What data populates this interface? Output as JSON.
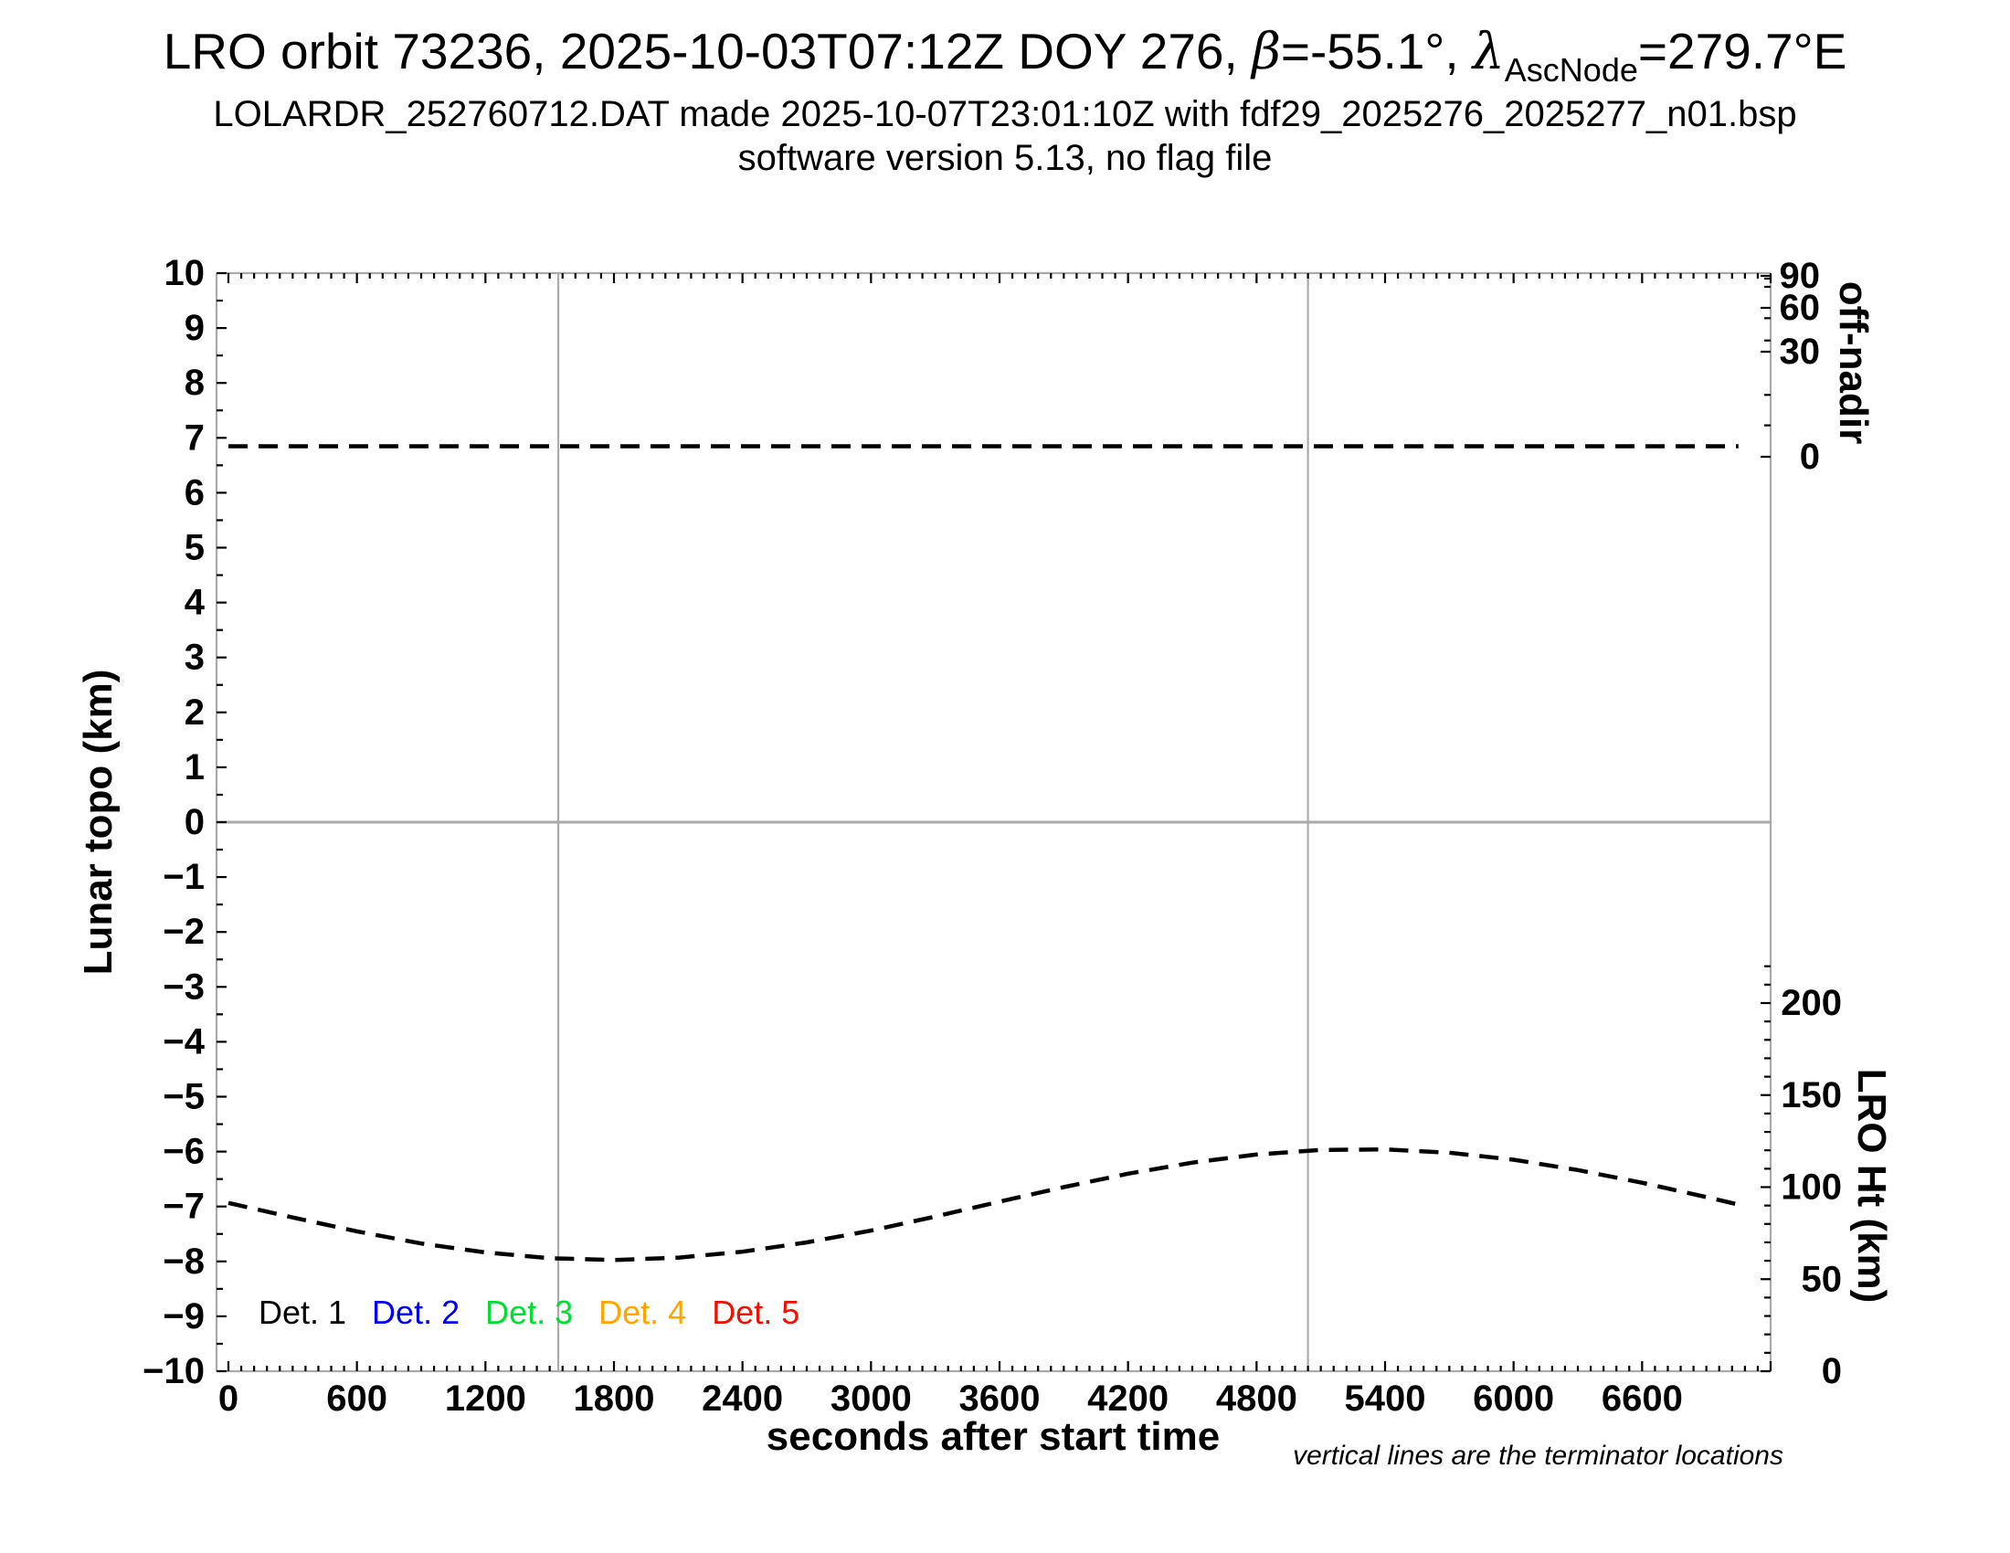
{
  "title": {
    "p1": "LRO orbit 73236, 2025-10-03T07:12Z DOY 276, ",
    "beta": "β",
    "p2": "=-55.1°, ",
    "lambda": "λ",
    "lambda_sub": "AscNode",
    "p3": "=279.7°E"
  },
  "subtitle": "LOLARDR_252760712.DAT made 2025-10-07T23:01:10Z with fdf29_2025276_2025277_n01.bsp",
  "subtitle2": "software version 5.13, no flag file",
  "footnote": "vertical lines are the terminator locations",
  "chart_data": {
    "type": "line",
    "x_axis": {
      "label": "seconds after start time",
      "min": 0,
      "max": 7200,
      "tick_step": 600,
      "minor_tick_step": 60,
      "tick_labels": [
        0,
        600,
        1200,
        1800,
        2400,
        3000,
        3600,
        4200,
        4800,
        5400,
        6000,
        6600
      ]
    },
    "y_left": {
      "label": "Lunar topo (km)",
      "min": -10,
      "max": 10,
      "tick_step": 1,
      "minor_tick_step": 0.5
    },
    "y_right_offnadir": {
      "label": "off-nadir",
      "ticks": [
        90,
        60,
        30,
        0
      ],
      "minor_step_deg": 10
    },
    "y_right_height": {
      "label": "LRO Ht (km)",
      "min": 0,
      "max": 200,
      "tick_step": 50,
      "minor_tick_step": 10,
      "ticks": [
        200,
        150,
        100,
        50,
        0
      ],
      "minor_tick_extent_km": 220
    },
    "terminator_lines_sec": [
      1540,
      5040
    ],
    "zero_topo_line_km": 0,
    "grid_color": "#aaaaaa",
    "series": [
      {
        "name": "off-nadir angle",
        "axis": "offnadir",
        "style": "dashed",
        "color": "#000000",
        "x_sec": [
          0,
          7050
        ],
        "y_deg": [
          3,
          3
        ]
      },
      {
        "name": "LRO height",
        "axis": "height",
        "style": "dashed",
        "color": "#000000",
        "x_sec": [
          0,
          300,
          600,
          900,
          1200,
          1500,
          1800,
          2100,
          2400,
          2700,
          3000,
          3300,
          3600,
          3900,
          4200,
          4500,
          4800,
          5100,
          5400,
          5700,
          6000,
          6300,
          6600,
          6900,
          7050
        ],
        "y_km": [
          91.4,
          83.5,
          76.0,
          69.4,
          64.5,
          61.4,
          60.4,
          61.7,
          64.9,
          70.0,
          76.4,
          84.0,
          92.1,
          100.0,
          107.3,
          113.3,
          117.7,
          120.2,
          120.5,
          118.7,
          114.9,
          109.3,
          102.4,
          94.6,
          90.5
        ]
      }
    ],
    "legend": [
      {
        "label": "Det. 1",
        "color": "#000000"
      },
      {
        "label": "Det. 2",
        "color": "#0000ee"
      },
      {
        "label": "Det. 3",
        "color": "#00dd33"
      },
      {
        "label": "Det. 4",
        "color": "#ffa500"
      },
      {
        "label": "Det. 5",
        "color": "#ee1100"
      }
    ]
  }
}
